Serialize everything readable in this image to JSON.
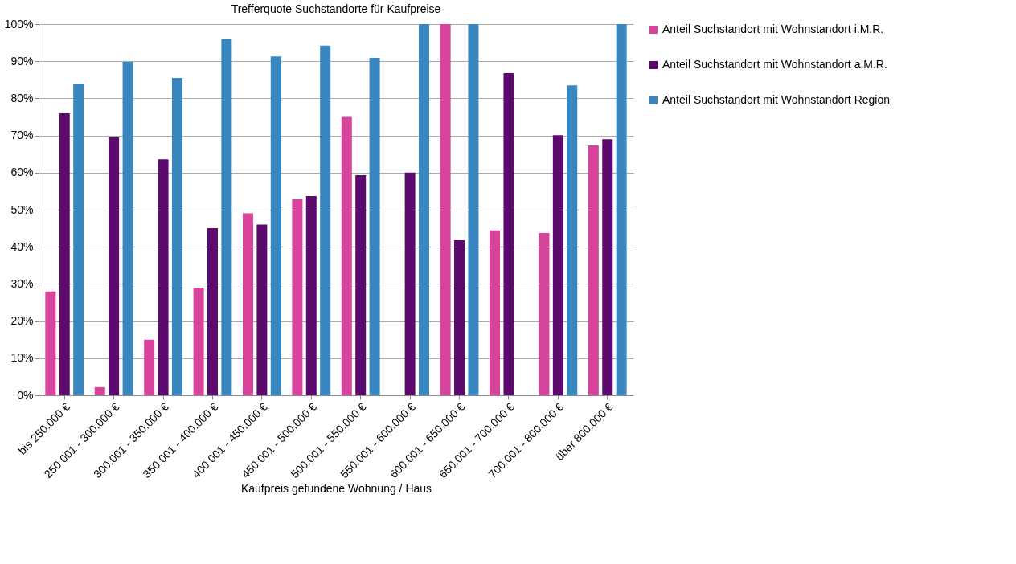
{
  "chart_data": {
    "type": "bar",
    "title": "Trefferquote Suchstandorte für Kaufpreise",
    "xlabel": "Kaufpreis gefundene Wohnung / Haus",
    "categories": [
      "bis 250.000 €",
      "250.001 - 300.000 €",
      "300.001 - 350.000 €",
      "350.001 - 400.000 €",
      "400.001 - 450.000 €",
      "450.001 - 500.000 €",
      "500.001 - 550.000 €",
      "550.001 - 600.000 €",
      "600.001 - 650.000 €",
      "650.001 - 700.000 €",
      "700.001 - 800.000 €",
      "über 800.000 €"
    ],
    "series": [
      {
        "name": "Anteil Suchstandort mit Wohnstandort i.M.R.",
        "color": "#d6449b",
        "values": [
          28,
          2.2,
          15,
          29,
          49,
          52.8,
          75,
          0,
          100,
          44.4,
          43.7,
          67.3
        ]
      },
      {
        "name": "Anteil Suchstandort mit Wohnstandort a.M.R.",
        "color": "#5c0a6e",
        "values": [
          76,
          69.5,
          63.6,
          45,
          46,
          53.7,
          59.3,
          60,
          41.8,
          86.8,
          70.1,
          69
        ]
      },
      {
        "name": "Anteil Suchstandort mit Wohnstandort Region",
        "color": "#3a87c0",
        "values": [
          84,
          89.8,
          85.5,
          96,
          91.3,
          94.2,
          90.9,
          100,
          100,
          0,
          83.5,
          100
        ]
      }
    ],
    "ylim": [
      0,
      100
    ],
    "yticks": [
      {
        "value": 0,
        "label": "0%"
      },
      {
        "value": 10,
        "label": "10%"
      },
      {
        "value": 20,
        "label": "20%"
      },
      {
        "value": 30,
        "label": "30%"
      },
      {
        "value": 40,
        "label": "40%"
      },
      {
        "value": 50,
        "label": "50%"
      },
      {
        "value": 60,
        "label": "60%"
      },
      {
        "value": 70,
        "label": "70%"
      },
      {
        "value": 80,
        "label": "80%"
      },
      {
        "value": 90,
        "label": "90%"
      },
      {
        "value": 100,
        "label": "100%"
      }
    ],
    "grid": "y",
    "legend": "right"
  }
}
